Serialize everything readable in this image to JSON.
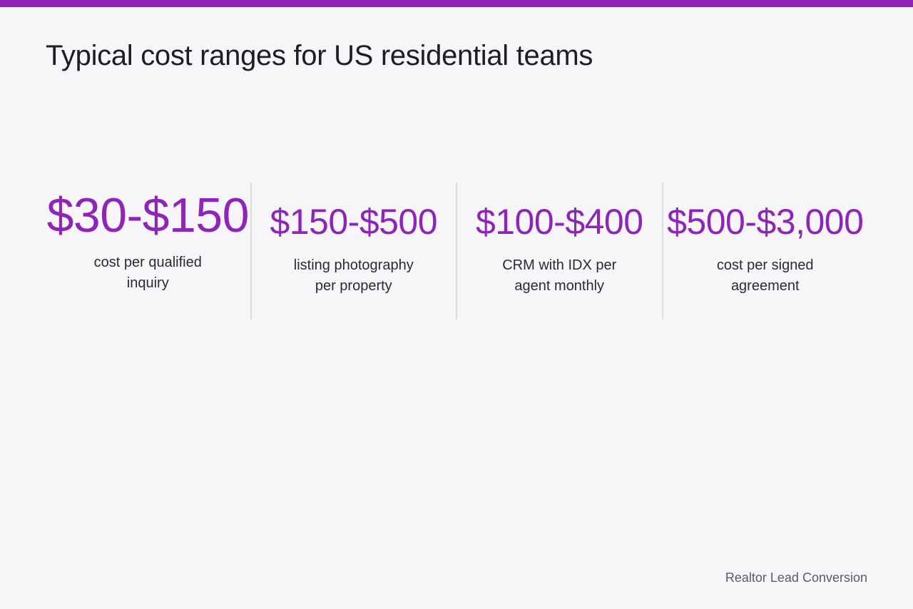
{
  "colors": {
    "accent": "#8e24b8",
    "background": "#f6f6f9",
    "title_text": "#1c1c2b",
    "divider": "#dcdce2"
  },
  "header": {
    "title": "Typical cost ranges for US residential teams"
  },
  "stats": [
    {
      "value": "$30-$150",
      "label": "cost per qualified inquiry"
    },
    {
      "value": "$150-$500",
      "label": "listing photography per property"
    },
    {
      "value": "$100-$400",
      "label": "CRM with IDX per agent monthly"
    },
    {
      "value": "$500-$3,000",
      "label": "cost per signed agreement"
    }
  ],
  "footer": {
    "brand": "Realtor Lead Conversion"
  }
}
